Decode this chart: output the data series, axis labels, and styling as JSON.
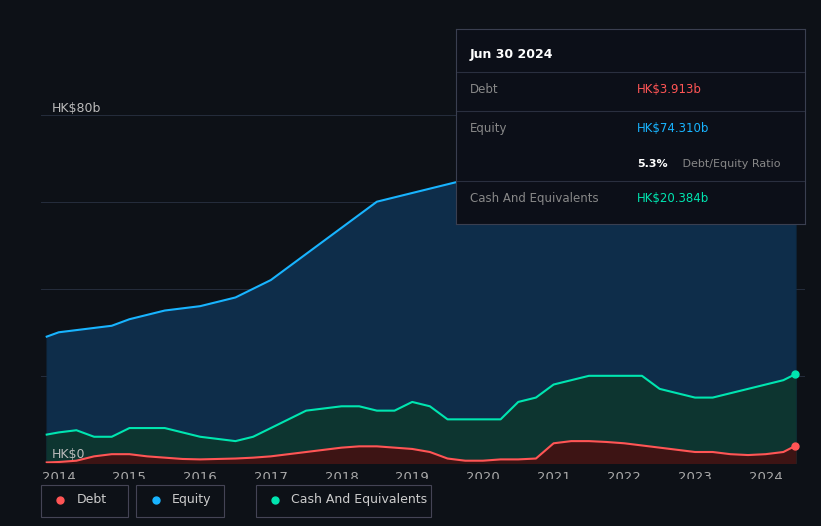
{
  "bg_color": "#0d1117",
  "plot_bg_color": "#0d1117",
  "grid_color": "#252d3d",
  "tooltip_date": "Jun 30 2024",
  "tooltip_debt_label": "Debt",
  "tooltip_debt_val": "HK$3.913b",
  "tooltip_equity_label": "Equity",
  "tooltip_equity_val": "HK$74.310b",
  "tooltip_ratio_bold": "5.3%",
  "tooltip_ratio_rest": " Debt/Equity Ratio",
  "tooltip_cash_label": "Cash And Equivalents",
  "tooltip_cash_val": "HK$20.384b",
  "ylabel_top": "HK$80b",
  "ylabel_bottom": "HK$0",
  "equity_color": "#18b4ff",
  "debt_color": "#ff5555",
  "cash_color": "#00e5b0",
  "equity_fill": "#0e2d4a",
  "cash_fill": "#0d3530",
  "debt_fill": "#3d1414",
  "years": [
    2013.83,
    2014.0,
    2014.25,
    2014.5,
    2014.75,
    2015.0,
    2015.25,
    2015.5,
    2015.75,
    2016.0,
    2016.25,
    2016.5,
    2016.75,
    2017.0,
    2017.25,
    2017.5,
    2017.75,
    2018.0,
    2018.25,
    2018.5,
    2018.75,
    2019.0,
    2019.25,
    2019.5,
    2019.75,
    2020.0,
    2020.25,
    2020.5,
    2020.75,
    2021.0,
    2021.25,
    2021.5,
    2021.75,
    2022.0,
    2022.25,
    2022.5,
    2022.75,
    2023.0,
    2023.25,
    2023.5,
    2023.75,
    2024.0,
    2024.25,
    2024.42
  ],
  "equity": [
    29,
    30,
    30.5,
    31,
    31.5,
    33,
    34,
    35,
    35.5,
    36,
    37,
    38,
    40,
    42,
    45,
    48,
    51,
    54,
    57,
    60,
    61,
    62,
    63,
    64,
    65,
    75,
    74,
    68,
    67,
    67,
    66.5,
    66,
    65.5,
    65,
    64,
    61,
    62,
    64,
    65,
    67,
    69,
    72,
    73,
    74.3
  ],
  "cash": [
    6.5,
    7,
    7.5,
    6,
    6,
    8,
    8,
    8,
    7,
    6,
    5.5,
    5,
    6,
    8,
    10,
    12,
    12.5,
    13,
    13,
    12,
    12,
    14,
    13,
    10,
    10,
    10,
    10,
    14,
    15,
    18,
    19,
    20,
    20,
    20,
    20,
    17,
    16,
    15,
    15,
    16,
    17,
    18,
    19,
    20.384
  ],
  "debt": [
    0.1,
    0.2,
    0.5,
    1.5,
    2.0,
    2.0,
    1.5,
    1.2,
    0.9,
    0.8,
    0.9,
    1.0,
    1.2,
    1.5,
    2.0,
    2.5,
    3.0,
    3.5,
    3.8,
    3.8,
    3.5,
    3.2,
    2.5,
    1.0,
    0.5,
    0.5,
    0.8,
    0.8,
    1.0,
    4.5,
    5.0,
    5.0,
    4.8,
    4.5,
    4.0,
    3.5,
    3.0,
    2.5,
    2.5,
    2.0,
    1.8,
    2.0,
    2.5,
    3.913
  ],
  "xlim": [
    2013.75,
    2024.55
  ],
  "ylim": [
    0,
    87
  ],
  "xticks": [
    2014,
    2015,
    2016,
    2017,
    2018,
    2019,
    2020,
    2021,
    2022,
    2023,
    2024
  ],
  "legend_labels": [
    "Debt",
    "Equity",
    "Cash And Equivalents"
  ],
  "legend_colors": [
    "#ff5555",
    "#18b4ff",
    "#00e5b0"
  ]
}
